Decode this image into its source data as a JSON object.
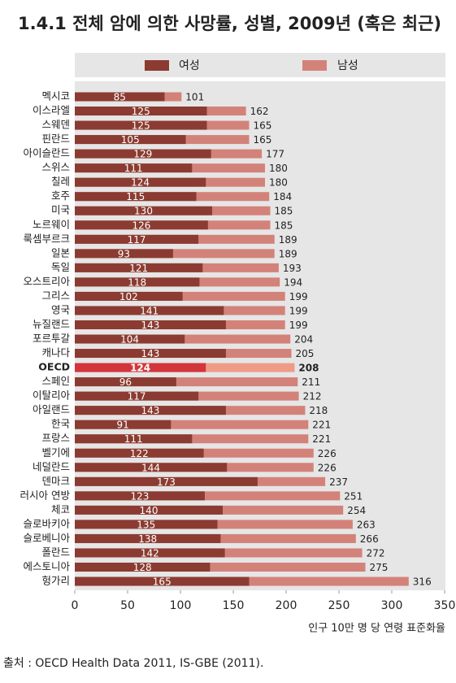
{
  "chart_data": {
    "type": "overlap-bar",
    "title": "1.4.1 전체 암에 의한 사망률, 성별, 2009년 (혹은 최근)",
    "x_label": "인구 10만 명 당 연령 표준화율",
    "source": "출처 : OECD Health Data 2011, IS-GBE (2011).",
    "categories": [
      "멕시코",
      "이스라엘",
      "스웨덴",
      "핀란드",
      "아이슬란드",
      "스위스",
      "칠레",
      "호주",
      "미국",
      "노르웨이",
      "룩셈부르크",
      "일본",
      "독일",
      "오스트리아",
      "그리스",
      "영국",
      "뉴질랜드",
      "포르투갈",
      "캐나다",
      "OECD",
      "스페인",
      "이탈리아",
      "아일랜드",
      "한국",
      "프랑스",
      "벨기에",
      "네덜란드",
      "덴마크",
      "러시아 연방",
      "체코",
      "슬로바키아",
      "슬로베니아",
      "폴란드",
      "에스토니아",
      "헝가리"
    ],
    "series": [
      {
        "name": "여성",
        "color": "#8b3b31",
        "highlight_color": "#d3353d",
        "values": [
          85,
          125,
          125,
          105,
          129,
          111,
          124,
          115,
          130,
          126,
          117,
          93,
          121,
          118,
          102,
          141,
          143,
          104,
          143,
          124,
          96,
          117,
          143,
          91,
          111,
          122,
          144,
          173,
          123,
          140,
          135,
          138,
          142,
          128,
          165
        ]
      },
      {
        "name": "남성",
        "color": "#d3827a",
        "highlight_color": "#ee9c88",
        "values": [
          101,
          162,
          165,
          165,
          177,
          180,
          180,
          184,
          185,
          185,
          189,
          189,
          193,
          194,
          199,
          199,
          199,
          204,
          205,
          208,
          211,
          212,
          218,
          221,
          221,
          226,
          226,
          237,
          251,
          254,
          263,
          266,
          272,
          275,
          316
        ]
      }
    ],
    "highlight_index": 19,
    "xlim": [
      0,
      350
    ],
    "xticks": [
      0,
      50,
      100,
      150,
      200,
      250,
      300,
      350
    ]
  }
}
